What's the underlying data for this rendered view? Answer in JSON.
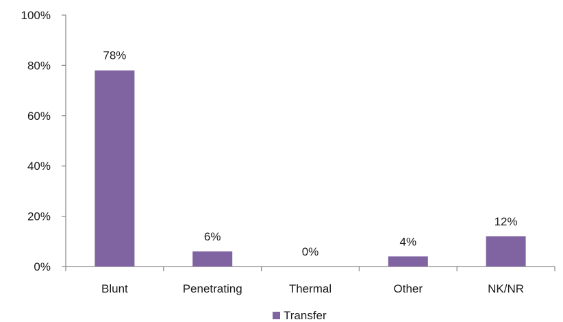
{
  "chart_data": {
    "type": "bar",
    "categories": [
      "Blunt",
      "Penetrating",
      "Thermal",
      "Other",
      "NK/NR"
    ],
    "series": [
      {
        "name": "Transfer",
        "values": [
          78,
          6,
          0,
          4,
          12
        ],
        "data_labels": [
          "78%",
          "6%",
          "0%",
          "4%",
          "12%"
        ],
        "color": "#8064a2"
      }
    ],
    "ylim": [
      0,
      100
    ],
    "yticks": [
      0,
      20,
      40,
      60,
      80,
      100
    ],
    "ytick_labels": [
      "0%",
      "20%",
      "40%",
      "60%",
      "80%",
      "100%"
    ],
    "grid": false,
    "legend": {
      "position": "bottom",
      "entries": [
        "Transfer"
      ]
    },
    "axis_color": "#868686",
    "text_color": "#1a1a1a"
  }
}
